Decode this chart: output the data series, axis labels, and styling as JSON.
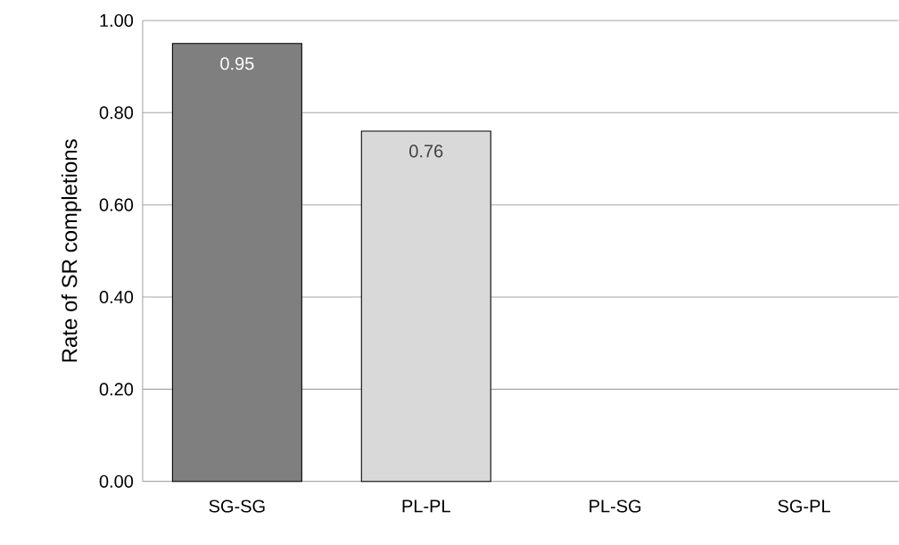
{
  "chart_data": {
    "type": "bar",
    "ylabel": "Rate of SR completions",
    "categories": [
      "SG-SG",
      "PL-PL",
      "PL-SG",
      "SG-PL"
    ],
    "values": [
      0.95,
      0.76,
      null,
      null
    ],
    "colors": [
      "#7f7f7f",
      "#d9d9d9",
      "#7f7f7f",
      "#d9d9d9"
    ],
    "ylim": [
      0,
      1
    ],
    "yticks": [
      {
        "value": 0,
        "label": "0.00"
      },
      {
        "value": 0.2,
        "label": "0.20"
      },
      {
        "value": 0.4,
        "label": "0.40"
      },
      {
        "value": 0.6,
        "label": "0.60"
      },
      {
        "value": 0.8,
        "label": "0.80"
      },
      {
        "value": 1,
        "label": "1.00"
      }
    ],
    "grid": "y",
    "data_labels": true
  }
}
